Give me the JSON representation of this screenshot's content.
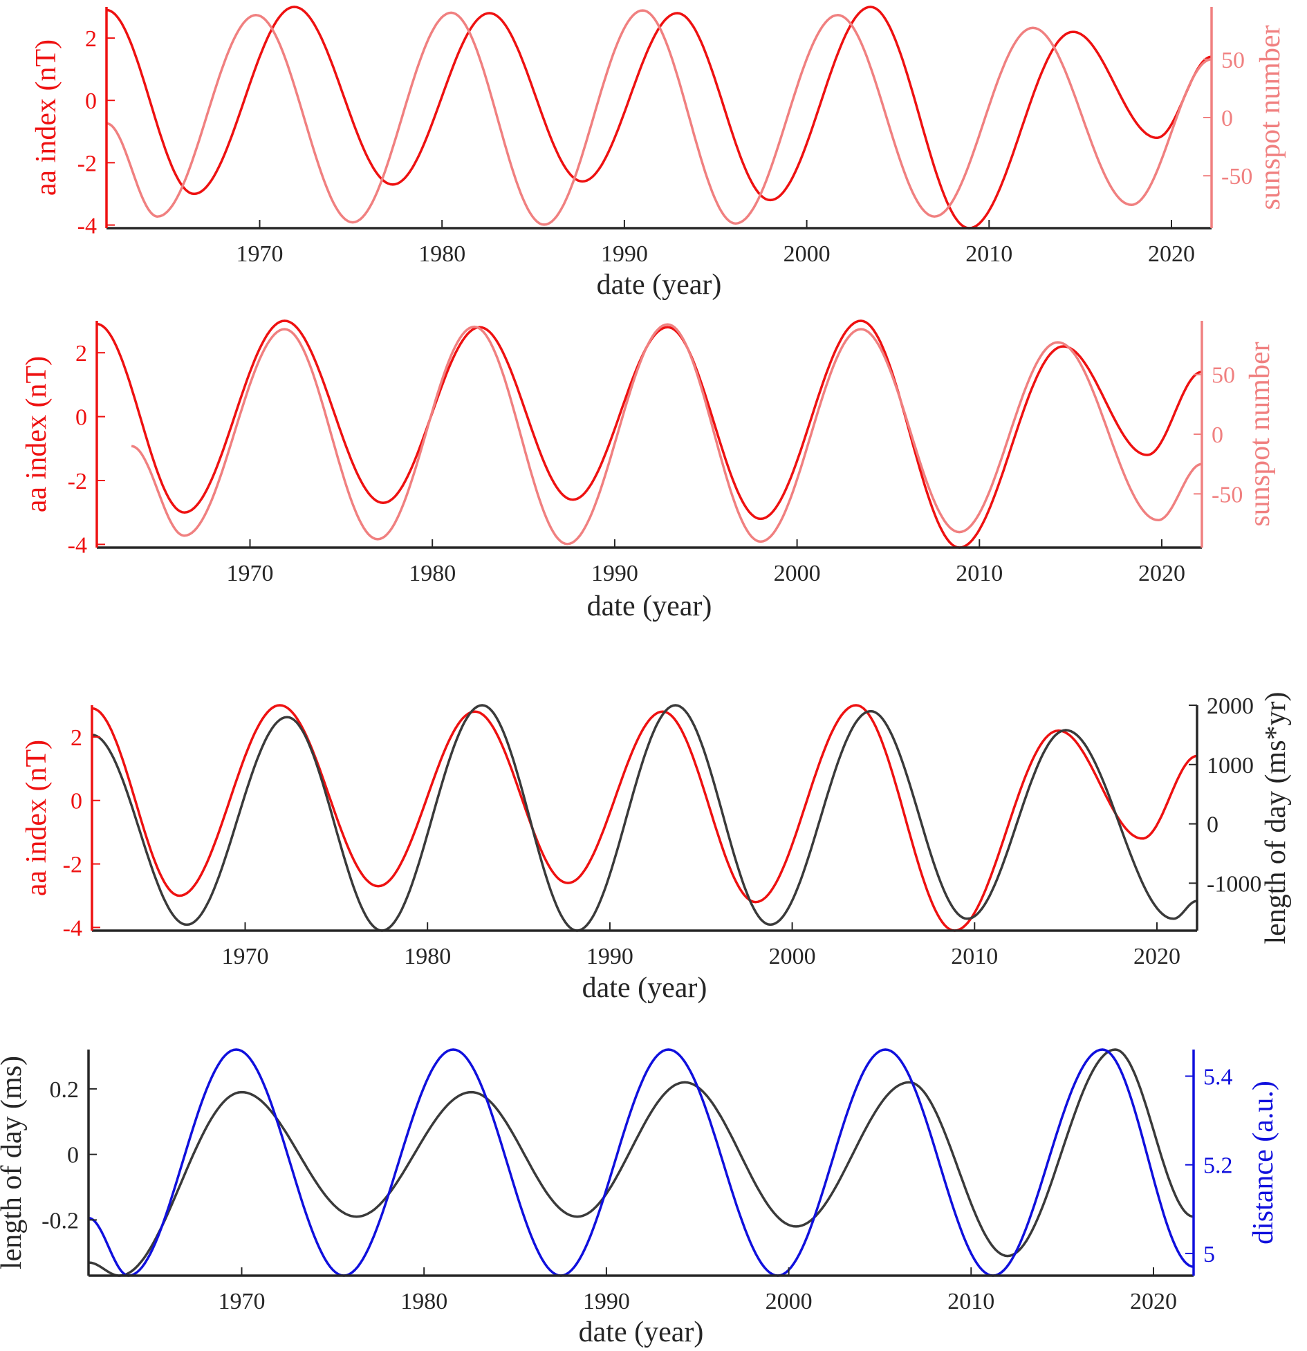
{
  "colors": {
    "aa": "#ee1111",
    "sunspot": "#f08080",
    "lod": "#3a3a3a",
    "distance": "#1010dd",
    "axis": "#262626"
  },
  "chart_data": [
    {
      "type": "line",
      "xlabel": "date (year)",
      "ylabel_left": "aa index (nT)",
      "ylabel_right": "sunspot number",
      "xlim": [
        1961.6,
        2022.2
      ],
      "xticks": [
        "1970",
        "1980",
        "1990",
        "2000",
        "2010",
        "2020"
      ],
      "ylim_left": [
        -4.1,
        3.0
      ],
      "yticks_left": [
        "-4",
        "-2",
        "0",
        "2"
      ],
      "ylim_right": [
        -95,
        95
      ],
      "yticks_right": [
        "-50",
        "0",
        "50"
      ],
      "series": [
        {
          "axis": "left",
          "color": "aa",
          "x": [
            1961.6,
            1966.4,
            1971.9,
            1977.3,
            1982.6,
            1987.7,
            1992.9,
            1998.0,
            2003.5,
            2008.9,
            2014.6,
            2019.2,
            2022.2
          ],
          "y": [
            2.9,
            -3.0,
            3.0,
            -2.7,
            2.8,
            -2.6,
            2.8,
            -3.2,
            3.0,
            -4.1,
            2.2,
            -1.2,
            1.4
          ]
        },
        {
          "axis": "right",
          "color": "sunspot",
          "x": [
            1961.6,
            1964.4,
            1969.8,
            1975.1,
            1980.5,
            1985.6,
            1991.0,
            1996.1,
            2001.7,
            2007.0,
            2012.4,
            2017.8,
            2022.2
          ],
          "y": [
            -5,
            -85,
            88,
            -90,
            90,
            -92,
            92,
            -91,
            88,
            -85,
            77,
            -75,
            50
          ]
        }
      ]
    },
    {
      "type": "line",
      "xlabel": "date (year)",
      "ylabel_left": "aa index (nT)",
      "ylabel_right": "sunspot number",
      "xlim": [
        1961.6,
        2022.2
      ],
      "xticks": [
        "1970",
        "1980",
        "1990",
        "2000",
        "2010",
        "2020"
      ],
      "ylim_left": [
        -4.1,
        3.0
      ],
      "yticks_left": [
        "-4",
        "-2",
        "0",
        "2"
      ],
      "ylim_right": [
        -95,
        95
      ],
      "yticks_right": [
        "-50",
        "0",
        "50"
      ],
      "series": [
        {
          "axis": "left",
          "color": "aa",
          "x": [
            1961.6,
            1966.4,
            1971.9,
            1977.3,
            1982.6,
            1987.7,
            1992.9,
            1998.0,
            2003.5,
            2008.9,
            2014.6,
            2019.2,
            2022.2
          ],
          "y": [
            2.9,
            -3.0,
            3.0,
            -2.7,
            2.8,
            -2.6,
            2.8,
            -3.2,
            3.0,
            -4.1,
            2.2,
            -1.2,
            1.4
          ]
        },
        {
          "axis": "right",
          "color": "sunspot",
          "x": [
            1963.5,
            1966.4,
            1971.9,
            1977.0,
            1982.3,
            1987.4,
            1992.9,
            1998.0,
            2003.5,
            2008.9,
            2014.3,
            2019.8,
            2022.2
          ],
          "y": [
            -10,
            -85,
            88,
            -88,
            90,
            -92,
            92,
            -90,
            88,
            -82,
            77,
            -72,
            -25
          ]
        }
      ]
    },
    {
      "type": "line",
      "xlabel": "date (year)",
      "ylabel_left": "aa index (nT)",
      "ylabel_right": "length of day (ms*yr)",
      "xlim": [
        1961.6,
        2022.2
      ],
      "xticks": [
        "1970",
        "1980",
        "1990",
        "2000",
        "2010",
        "2020"
      ],
      "ylim_left": [
        -4.1,
        3.0
      ],
      "yticks_left": [
        "-4",
        "-2",
        "0",
        "2"
      ],
      "ylim_right": [
        -1800,
        2000
      ],
      "yticks_right": [
        "-1000",
        "0",
        "1000",
        "2000"
      ],
      "series": [
        {
          "axis": "left",
          "color": "aa",
          "x": [
            1961.6,
            1966.4,
            1971.9,
            1977.3,
            1982.6,
            1987.7,
            1992.9,
            1998.0,
            2003.5,
            2008.9,
            2014.6,
            2019.2,
            2022.2
          ],
          "y": [
            2.9,
            -3.0,
            3.0,
            -2.7,
            2.8,
            -2.6,
            2.8,
            -3.2,
            3.0,
            -4.1,
            2.2,
            -1.2,
            1.4
          ]
        },
        {
          "axis": "right",
          "color": "lod",
          "x": [
            1961.6,
            1966.8,
            1972.3,
            1977.5,
            1983.0,
            1988.2,
            1993.6,
            1998.8,
            2004.3,
            2009.6,
            2015.0,
            2020.9,
            2022.2
          ],
          "y": [
            1500,
            -1700,
            1800,
            -1800,
            2000,
            -1800,
            2000,
            -1700,
            1900,
            -1600,
            1580,
            -1600,
            -1300
          ]
        }
      ]
    },
    {
      "type": "line",
      "xlabel": "date (year)",
      "ylabel_left": "length of day (ms)",
      "ylabel_right": "distance (a.u.)",
      "xlim": [
        1961.6,
        2022.2
      ],
      "xticks": [
        "1970",
        "1980",
        "1990",
        "2000",
        "2010",
        "2020"
      ],
      "ylim_left": [
        -0.37,
        0.32
      ],
      "yticks_left": [
        "-0.2",
        "0",
        "0.2"
      ],
      "ylim_right": [
        4.95,
        5.46
      ],
      "yticks_right": [
        "5",
        "5.2",
        "5.4"
      ],
      "series": [
        {
          "axis": "left",
          "color": "lod",
          "x": [
            1961.6,
            1963.3,
            1970.0,
            1976.3,
            1982.6,
            1988.4,
            1994.3,
            2000.4,
            2006.6,
            2012.0,
            2017.9,
            2022.2
          ],
          "y": [
            -0.33,
            -0.37,
            0.19,
            -0.19,
            0.19,
            -0.19,
            0.22,
            -0.22,
            0.22,
            -0.31,
            0.32,
            -0.19
          ]
        },
        {
          "axis": "right",
          "color": "distance",
          "x": [
            1961.6,
            1963.8,
            1969.7,
            1975.6,
            1981.6,
            1987.5,
            1993.4,
            1999.4,
            2005.3,
            2011.2,
            2017.2,
            2022.2
          ],
          "y": [
            5.08,
            4.95,
            5.46,
            4.95,
            5.46,
            4.95,
            5.46,
            4.95,
            5.46,
            4.95,
            5.46,
            4.97
          ]
        }
      ]
    }
  ]
}
